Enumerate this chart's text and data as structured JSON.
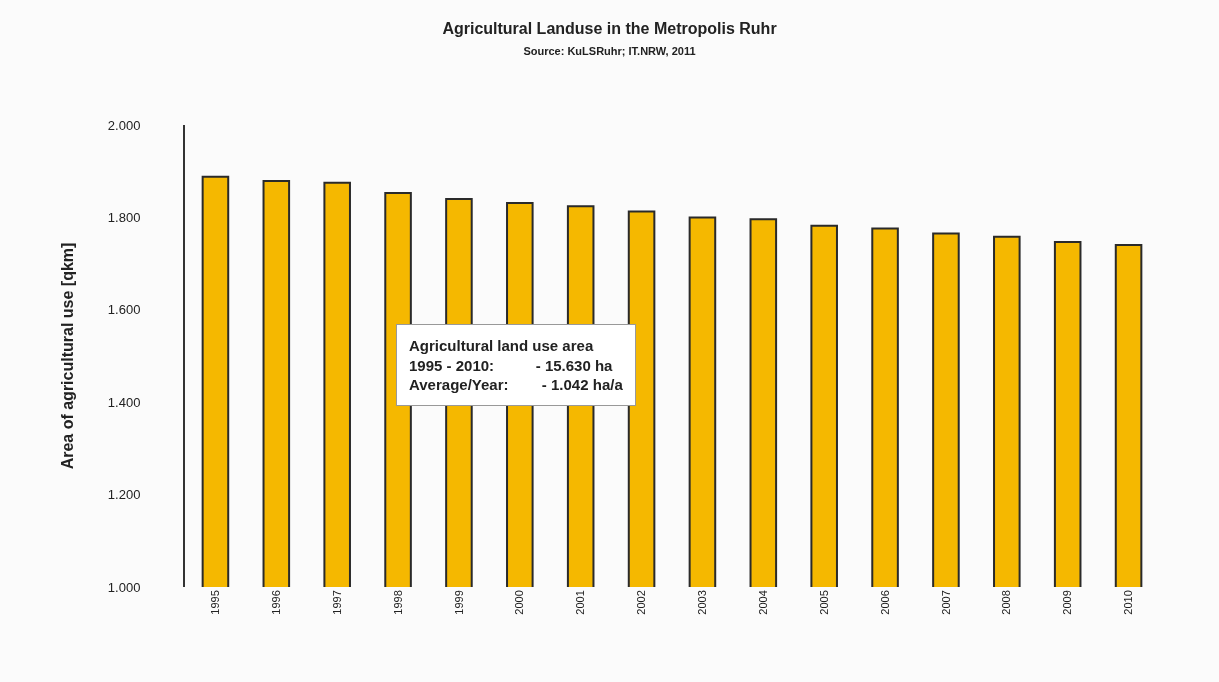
{
  "chart_data": {
    "type": "bar",
    "title": "Agricultural Landuse in the Metropolis Ruhr",
    "subtitle": "Source: KuLSRuhr; IT.NRW, 2011",
    "ylabel": "Area of agricultural use [qkm]",
    "categories": [
      "1995",
      "1996",
      "1997",
      "1998",
      "1999",
      "2000",
      "2001",
      "2002",
      "2003",
      "2004",
      "2005",
      "2006",
      "2007",
      "2008",
      "2009",
      "2010"
    ],
    "values": [
      1888,
      1879,
      1875,
      1853,
      1840,
      1831,
      1824,
      1813,
      1800,
      1796,
      1782,
      1776,
      1765,
      1758,
      1747,
      1740
    ],
    "color": "#f5b800",
    "ylim": [
      1000,
      2000
    ],
    "yticks": [
      {
        "value": 1000,
        "label": "1.000"
      },
      {
        "value": 1200,
        "label": "1.200"
      },
      {
        "value": 1400,
        "label": "1.400"
      },
      {
        "value": 1600,
        "label": "1.600"
      },
      {
        "value": 1800,
        "label": "1.800"
      },
      {
        "value": 2000,
        "label": "2.000"
      }
    ],
    "grid": false,
    "annotations": [
      "Agricultural land use area\n1995 - 2010:          - 15.630 ha\nAverage/Year:        - 1.042 ha/a"
    ]
  }
}
